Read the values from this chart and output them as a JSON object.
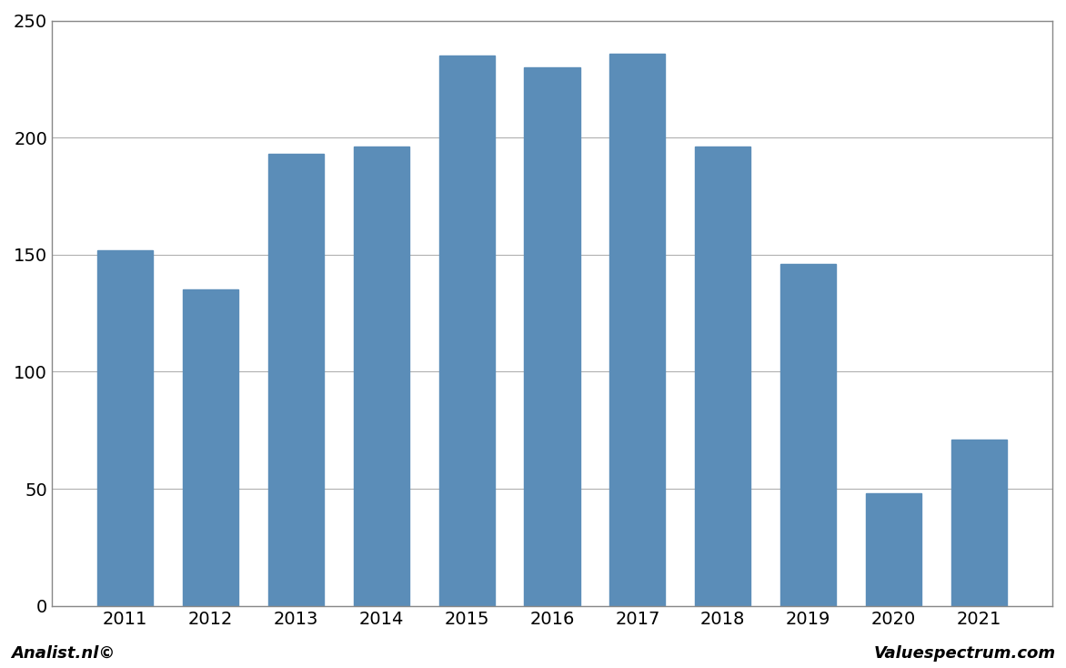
{
  "years": [
    2011,
    2012,
    2013,
    2014,
    2015,
    2016,
    2017,
    2018,
    2019,
    2020,
    2021
  ],
  "values": [
    152,
    135,
    193,
    196,
    235,
    230,
    236,
    196,
    146,
    48,
    71
  ],
  "bar_color": "#5b8db8",
  "background_color": "#ffffff",
  "plot_bg_color": "#ffffff",
  "grid_color": "#b0b0b0",
  "ylim": [
    0,
    250
  ],
  "yticks": [
    0,
    50,
    100,
    150,
    200,
    250
  ],
  "ylabel": "",
  "xlabel": "",
  "footer_left": "Analist.nl©",
  "footer_right": "Valuespectrum.com",
  "footer_fontsize": 13,
  "tick_fontsize": 14,
  "border_color": "#888888"
}
